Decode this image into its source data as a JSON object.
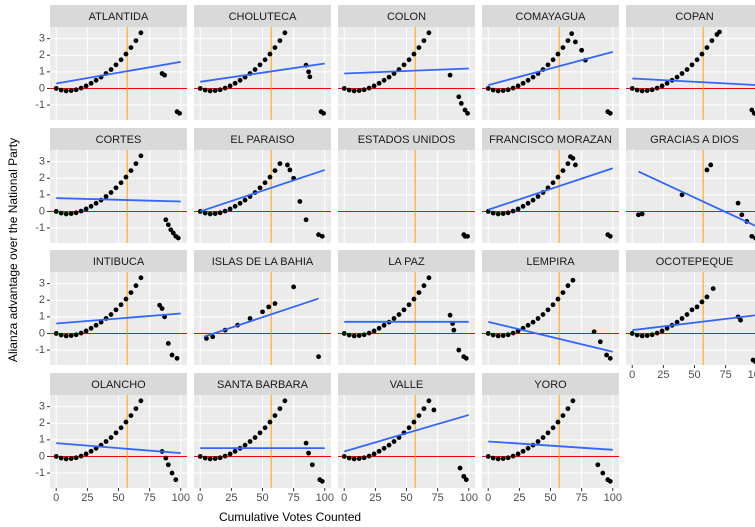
{
  "chart_data": {
    "type": "scatter",
    "xlabel": "Cumulative Votes Counted",
    "ylabel": "Alianza advantage over the National Party",
    "xlim": [
      -5,
      105
    ],
    "ylim": [
      -1.9,
      3.7
    ],
    "xticks": [
      0,
      25,
      50,
      75,
      100
    ],
    "yticks": [
      -1,
      0,
      1,
      2,
      3
    ],
    "vline": 57,
    "hline": 0,
    "point_color": "#000000",
    "fit_color": "#3366ff",
    "vline_color": "#ffa500",
    "hline_color": "#ff0000",
    "panels": [
      {
        "title": "ATLANTIDA",
        "x": [
          0,
          4,
          8,
          12,
          16,
          20,
          24,
          28,
          32,
          36,
          40,
          44,
          48,
          52,
          56,
          60,
          64,
          68,
          85,
          87,
          97,
          99
        ],
        "y": [
          0,
          -0.1,
          -0.15,
          -0.13,
          -0.08,
          0.02,
          0.15,
          0.31,
          0.49,
          0.68,
          0.9,
          1.14,
          1.42,
          1.73,
          2.07,
          2.46,
          2.88,
          3.35,
          0.9,
          0.8,
          -1.4,
          -1.5
        ],
        "fit": {
          "x": [
            0,
            100
          ],
          "y": [
            0.3,
            1.6
          ]
        }
      },
      {
        "title": "CHOLUTECA",
        "x": [
          0,
          4,
          8,
          12,
          16,
          20,
          24,
          28,
          32,
          36,
          40,
          44,
          48,
          52,
          56,
          60,
          64,
          68,
          85,
          87,
          88,
          97,
          99
        ],
        "y": [
          0,
          -0.1,
          -0.15,
          -0.13,
          -0.08,
          0.02,
          0.15,
          0.31,
          0.49,
          0.68,
          0.9,
          1.14,
          1.42,
          1.73,
          2.07,
          2.46,
          2.88,
          3.35,
          1.4,
          1.0,
          0.7,
          -1.4,
          -1.5
        ],
        "fit": {
          "x": [
            0,
            100
          ],
          "y": [
            0.4,
            1.5
          ]
        }
      },
      {
        "title": "COLON",
        "x": [
          0,
          4,
          8,
          12,
          16,
          20,
          24,
          28,
          32,
          36,
          40,
          44,
          48,
          52,
          56,
          60,
          64,
          68,
          85,
          92,
          94,
          97,
          99
        ],
        "y": [
          0,
          -0.1,
          -0.15,
          -0.13,
          -0.08,
          0.02,
          0.15,
          0.31,
          0.49,
          0.68,
          0.9,
          1.14,
          1.42,
          1.73,
          2.07,
          2.46,
          2.88,
          3.35,
          0.8,
          -0.5,
          -0.9,
          -1.3,
          -1.5
        ],
        "fit": {
          "x": [
            0,
            100
          ],
          "y": [
            0.9,
            1.2
          ]
        }
      },
      {
        "title": "COMAYAGUA",
        "x": [
          0,
          4,
          8,
          12,
          16,
          20,
          24,
          28,
          32,
          36,
          40,
          44,
          48,
          52,
          56,
          60,
          64,
          67,
          70,
          75,
          78,
          96,
          98
        ],
        "y": [
          0,
          -0.1,
          -0.15,
          -0.13,
          -0.08,
          0.02,
          0.15,
          0.31,
          0.49,
          0.68,
          0.9,
          1.14,
          1.42,
          1.73,
          2.07,
          2.46,
          2.88,
          3.3,
          2.8,
          2.3,
          1.7,
          -1.4,
          -1.5
        ],
        "fit": {
          "x": [
            0,
            100
          ],
          "y": [
            0.2,
            2.2
          ]
        }
      },
      {
        "title": "COPAN",
        "x": [
          0,
          4,
          8,
          12,
          16,
          20,
          24,
          28,
          32,
          36,
          40,
          44,
          48,
          52,
          56,
          60,
          64,
          68,
          70,
          96,
          98
        ],
        "y": [
          0,
          -0.1,
          -0.15,
          -0.13,
          -0.08,
          0.02,
          0.15,
          0.31,
          0.49,
          0.68,
          0.9,
          1.14,
          1.42,
          1.73,
          2.07,
          2.46,
          2.88,
          3.25,
          3.4,
          -1.3,
          -1.5
        ],
        "fit": {
          "x": [
            0,
            100
          ],
          "y": [
            0.6,
            0.2
          ]
        }
      },
      {
        "title": "CORTES",
        "x": [
          0,
          4,
          8,
          12,
          16,
          20,
          24,
          28,
          32,
          36,
          40,
          44,
          48,
          52,
          56,
          60,
          64,
          68,
          88,
          90,
          92,
          94,
          96,
          98
        ],
        "y": [
          0,
          -0.1,
          -0.15,
          -0.13,
          -0.08,
          0.02,
          0.15,
          0.31,
          0.49,
          0.68,
          0.9,
          1.14,
          1.42,
          1.73,
          2.07,
          2.46,
          2.88,
          3.35,
          -0.5,
          -0.8,
          -1.1,
          -1.3,
          -1.5,
          -1.6
        ],
        "fit": {
          "x": [
            0,
            100
          ],
          "y": [
            0.8,
            0.6
          ]
        }
      },
      {
        "title": "EL PARAISO",
        "x": [
          0,
          4,
          8,
          12,
          16,
          20,
          24,
          28,
          32,
          36,
          40,
          44,
          48,
          52,
          56,
          60,
          64,
          70,
          72,
          75,
          80,
          85,
          95,
          98
        ],
        "y": [
          0,
          -0.1,
          -0.15,
          -0.13,
          -0.08,
          0.02,
          0.15,
          0.31,
          0.49,
          0.68,
          0.9,
          1.14,
          1.42,
          1.73,
          2.07,
          2.46,
          2.88,
          2.8,
          2.5,
          2.0,
          0.6,
          -0.5,
          -1.4,
          -1.5
        ],
        "fit": {
          "x": [
            0,
            100
          ],
          "y": [
            0.0,
            2.5
          ]
        }
      },
      {
        "title": "ESTADOS UNIDOS",
        "x": [
          96,
          97,
          99
        ],
        "y": [
          -1.4,
          -1.5,
          -1.5
        ]
      },
      {
        "title": "FRANCISCO MORAZAN",
        "x": [
          0,
          4,
          8,
          12,
          16,
          20,
          24,
          28,
          32,
          36,
          40,
          44,
          48,
          52,
          56,
          60,
          64,
          66,
          68,
          70,
          96,
          98
        ],
        "y": [
          0,
          -0.1,
          -0.15,
          -0.13,
          -0.08,
          0.02,
          0.15,
          0.31,
          0.49,
          0.68,
          0.9,
          1.14,
          1.42,
          1.73,
          2.07,
          2.46,
          2.88,
          3.3,
          3.2,
          2.8,
          -1.4,
          -1.5
        ],
        "fit": {
          "x": [
            0,
            100
          ],
          "y": [
            0.1,
            2.6
          ]
        }
      },
      {
        "title": "GRACIAS A DIOS",
        "x": [
          5,
          8,
          40,
          60,
          63,
          85,
          88,
          92,
          96,
          99
        ],
        "y": [
          -0.2,
          -0.15,
          1.0,
          2.5,
          2.8,
          0.5,
          -0.2,
          -0.6,
          -1.5,
          -1.6
        ],
        "fit": {
          "x": [
            5,
            100
          ],
          "y": [
            2.4,
            -0.9
          ]
        }
      },
      {
        "title": "INTIBUCA",
        "x": [
          0,
          4,
          8,
          12,
          16,
          20,
          24,
          28,
          32,
          36,
          40,
          44,
          48,
          52,
          56,
          60,
          64,
          68,
          83,
          85,
          87,
          90,
          93,
          97
        ],
        "y": [
          0,
          -0.1,
          -0.15,
          -0.13,
          -0.08,
          0.02,
          0.15,
          0.31,
          0.49,
          0.68,
          0.9,
          1.14,
          1.42,
          1.73,
          2.07,
          2.46,
          2.88,
          3.35,
          1.7,
          1.5,
          1.0,
          -0.6,
          -1.3,
          -1.5
        ],
        "fit": {
          "x": [
            0,
            100
          ],
          "y": [
            0.6,
            1.2
          ]
        }
      },
      {
        "title": "ISLAS DE LA BAHIA",
        "x": [
          5,
          10,
          20,
          30,
          40,
          50,
          55,
          60,
          75,
          95
        ],
        "y": [
          -0.3,
          -0.2,
          0.2,
          0.5,
          0.9,
          1.3,
          1.6,
          1.8,
          2.8,
          -1.4
        ],
        "fit": {
          "x": [
            3,
            95
          ],
          "y": [
            -0.2,
            2.1
          ]
        }
      },
      {
        "title": "LA PAZ",
        "x": [
          0,
          4,
          8,
          12,
          16,
          20,
          24,
          28,
          32,
          36,
          40,
          44,
          48,
          52,
          56,
          60,
          64,
          68,
          85,
          87,
          88,
          92,
          96,
          98
        ],
        "y": [
          0,
          -0.1,
          -0.15,
          -0.13,
          -0.08,
          0.02,
          0.15,
          0.31,
          0.49,
          0.68,
          0.9,
          1.14,
          1.42,
          1.73,
          2.07,
          2.46,
          2.88,
          3.35,
          1.1,
          0.6,
          0.2,
          -1.0,
          -1.4,
          -1.5
        ],
        "fit": {
          "x": [
            0,
            100
          ],
          "y": [
            0.7,
            0.7
          ]
        }
      },
      {
        "title": "LEMPIRA",
        "x": [
          0,
          4,
          8,
          12,
          16,
          20,
          24,
          28,
          32,
          36,
          40,
          44,
          48,
          52,
          56,
          60,
          64,
          68,
          85,
          90,
          95,
          98
        ],
        "y": [
          0,
          -0.1,
          -0.15,
          -0.13,
          -0.08,
          0.02,
          0.15,
          0.31,
          0.49,
          0.68,
          0.9,
          1.14,
          1.42,
          1.73,
          2.07,
          2.46,
          2.88,
          3.2,
          0.1,
          -0.5,
          -1.3,
          -1.5
        ],
        "fit": {
          "x": [
            0,
            100
          ],
          "y": [
            0.7,
            -1.1
          ]
        }
      },
      {
        "title": "OCOTEPEQUE",
        "x": [
          0,
          4,
          8,
          12,
          16,
          20,
          24,
          28,
          32,
          36,
          40,
          44,
          48,
          52,
          56,
          60,
          65,
          85,
          87,
          97,
          99
        ],
        "y": [
          0,
          -0.1,
          -0.15,
          -0.13,
          -0.08,
          0.02,
          0.15,
          0.31,
          0.49,
          0.68,
          0.9,
          1.14,
          1.42,
          1.6,
          1.9,
          2.2,
          2.7,
          1.0,
          0.8,
          -1.6,
          -1.7
        ],
        "fit": {
          "x": [
            0,
            100
          ],
          "y": [
            0.2,
            1.1
          ]
        }
      },
      {
        "title": "OLANCHO",
        "x": [
          0,
          4,
          8,
          12,
          16,
          20,
          24,
          28,
          32,
          36,
          40,
          44,
          48,
          52,
          56,
          60,
          64,
          68,
          85,
          88,
          90,
          93,
          96
        ],
        "y": [
          0,
          -0.1,
          -0.15,
          -0.13,
          -0.08,
          0.02,
          0.15,
          0.31,
          0.49,
          0.68,
          0.9,
          1.14,
          1.42,
          1.73,
          2.07,
          2.46,
          2.88,
          3.35,
          0.3,
          -0.1,
          -0.5,
          -1.0,
          -1.4
        ],
        "fit": {
          "x": [
            0,
            100
          ],
          "y": [
            0.8,
            0.2
          ]
        }
      },
      {
        "title": "SANTA BARBARA",
        "x": [
          0,
          4,
          8,
          12,
          16,
          20,
          24,
          28,
          32,
          36,
          40,
          44,
          48,
          52,
          56,
          60,
          64,
          68,
          85,
          87,
          90,
          96,
          98
        ],
        "y": [
          0,
          -0.1,
          -0.15,
          -0.13,
          -0.08,
          0.02,
          0.15,
          0.31,
          0.49,
          0.68,
          0.9,
          1.14,
          1.42,
          1.73,
          2.07,
          2.46,
          2.88,
          3.35,
          0.8,
          0.2,
          -0.5,
          -1.4,
          -1.5
        ],
        "fit": {
          "x": [
            0,
            100
          ],
          "y": [
            0.5,
            0.5
          ]
        }
      },
      {
        "title": "VALLE",
        "x": [
          0,
          4,
          8,
          12,
          16,
          20,
          24,
          28,
          32,
          36,
          40,
          44,
          48,
          52,
          56,
          60,
          64,
          68,
          72,
          93,
          96,
          98
        ],
        "y": [
          0,
          -0.1,
          -0.15,
          -0.13,
          -0.08,
          0.02,
          0.15,
          0.31,
          0.49,
          0.68,
          0.9,
          1.14,
          1.42,
          1.73,
          2.07,
          2.46,
          2.88,
          3.35,
          2.8,
          -0.7,
          -1.2,
          -1.4
        ],
        "fit": {
          "x": [
            0,
            100
          ],
          "y": [
            0.3,
            2.5
          ]
        }
      },
      {
        "title": "YORO",
        "x": [
          0,
          4,
          8,
          12,
          16,
          20,
          24,
          28,
          32,
          36,
          40,
          44,
          48,
          52,
          56,
          60,
          64,
          68,
          88,
          92,
          96,
          98
        ],
        "y": [
          0,
          -0.1,
          -0.15,
          -0.13,
          -0.08,
          0.02,
          0.15,
          0.31,
          0.49,
          0.68,
          0.9,
          1.14,
          1.42,
          1.73,
          2.07,
          2.46,
          2.88,
          3.35,
          -0.5,
          -1.0,
          -1.4,
          -1.5
        ],
        "fit": {
          "x": [
            0,
            100
          ],
          "y": [
            0.9,
            0.4
          ]
        }
      }
    ]
  }
}
